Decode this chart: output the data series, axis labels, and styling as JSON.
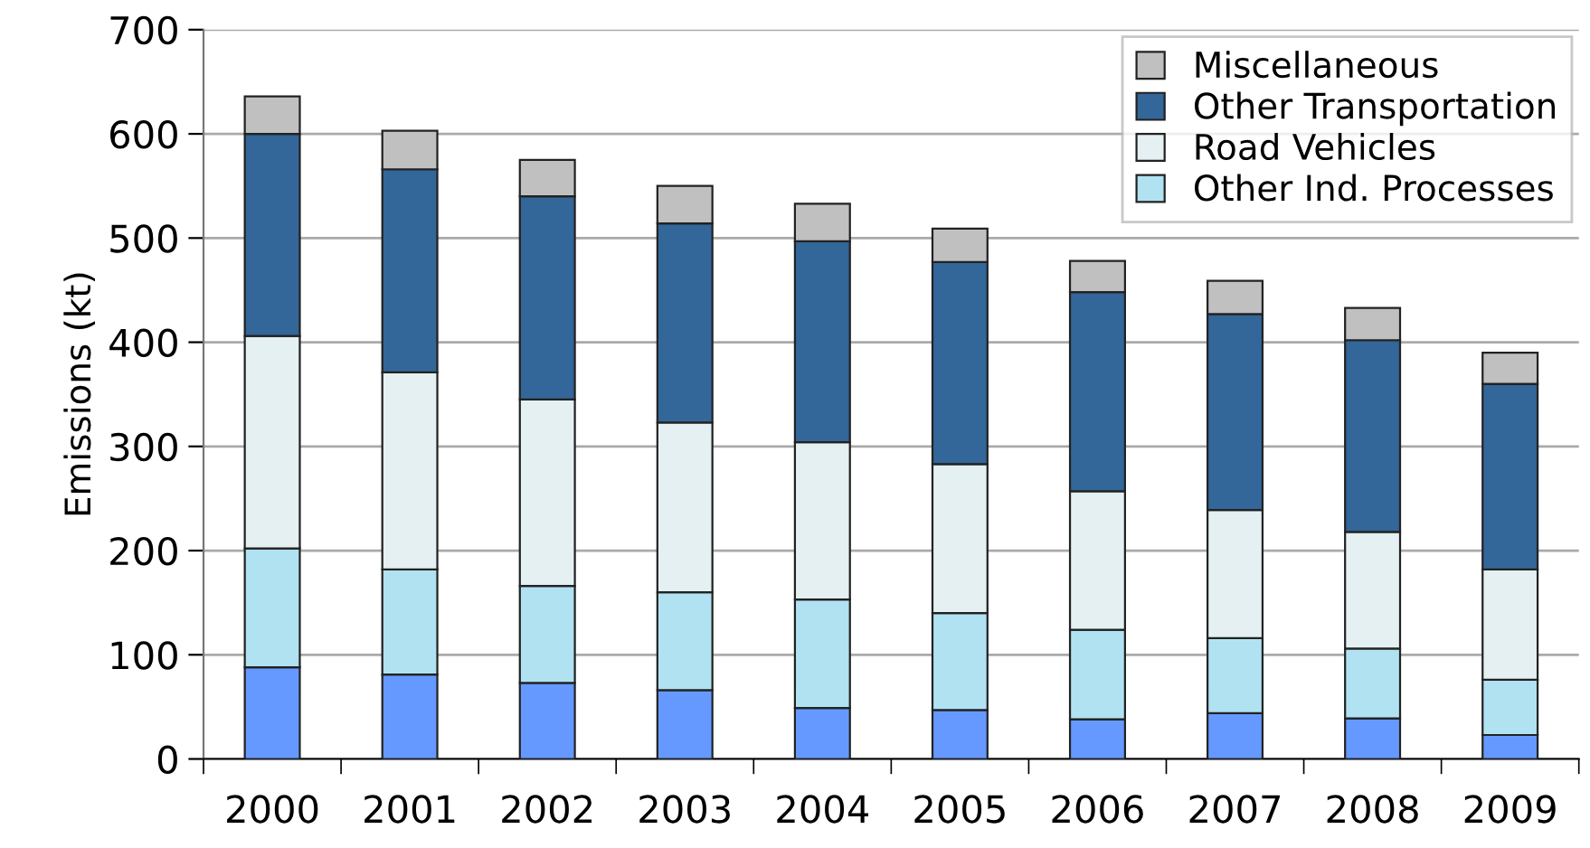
{
  "chart_data": {
    "type": "bar",
    "stacked": true,
    "ylabel": "Emissions (kt)",
    "categories": [
      "2000",
      "2001",
      "2002",
      "2003",
      "2004",
      "2005",
      "2006",
      "2007",
      "2008",
      "2009"
    ],
    "series": [
      {
        "color": "#6699ff",
        "values": [
          88,
          81,
          73,
          66,
          49,
          47,
          38,
          44,
          39,
          23
        ]
      },
      {
        "name": "Other Ind. Processes",
        "color": "#b0e2f2",
        "values": [
          114,
          101,
          93,
          94,
          104,
          93,
          86,
          72,
          67,
          53
        ]
      },
      {
        "name": "Road Vehicles",
        "color": "#e4f0f2",
        "values": [
          204,
          189,
          179,
          163,
          151,
          143,
          133,
          123,
          112,
          106
        ]
      },
      {
        "name": "Other Transportation",
        "color": "#336699",
        "values": [
          194,
          195,
          195,
          191,
          193,
          194,
          191,
          188,
          184,
          178
        ]
      },
      {
        "name": "Miscellaneous",
        "color": "#c0c0c0",
        "values": [
          36,
          37,
          35,
          36,
          36,
          32,
          30,
          32,
          31,
          30
        ]
      }
    ],
    "ylim": [
      0,
      700
    ],
    "yticks": [
      0,
      100,
      200,
      300,
      400,
      500,
      600,
      700
    ],
    "grid": "y",
    "legend": "top right"
  }
}
